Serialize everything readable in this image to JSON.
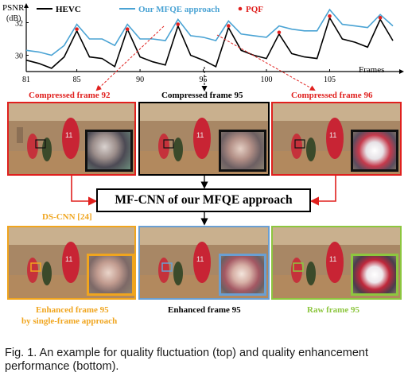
{
  "chart_data": {
    "type": "line",
    "ylabel": "PSNR",
    "ylabel_unit": "(dB)",
    "xlabel": "Frames",
    "xlim": [
      81,
      110
    ],
    "ylim": [
      29.0,
      33.0
    ],
    "x_ticks": [
      81,
      85,
      90,
      95,
      100,
      105
    ],
    "y_ticks": [
      30,
      32
    ],
    "x": [
      81,
      82,
      83,
      84,
      85,
      86,
      87,
      88,
      89,
      90,
      91,
      92,
      93,
      94,
      95,
      96,
      97,
      98,
      99,
      100,
      101,
      102,
      103,
      104,
      105,
      106,
      107,
      108,
      109,
      110
    ],
    "series": [
      {
        "name": "HEVC",
        "color": "#000000",
        "values": [
          29.7,
          29.5,
          29.2,
          29.9,
          31.5,
          29.9,
          29.8,
          29.3,
          31.6,
          29.9,
          29.6,
          29.4,
          31.8,
          30.0,
          29.7,
          29.3,
          31.7,
          30.3,
          30.0,
          29.8,
          31.3,
          30.1,
          29.9,
          29.8,
          32.3,
          31.0,
          30.8,
          30.5,
          32.2,
          30.9
        ]
      },
      {
        "name": "Our MFQE approach",
        "color": "#4aa3d4",
        "values": [
          30.3,
          30.2,
          30.0,
          30.6,
          31.9,
          31.0,
          31.0,
          30.6,
          31.9,
          31.0,
          31.0,
          30.9,
          32.2,
          31.2,
          31.1,
          30.9,
          32.1,
          31.3,
          31.2,
          31.1,
          31.8,
          31.6,
          31.5,
          31.5,
          32.8,
          31.9,
          31.8,
          31.7,
          32.5,
          31.8
        ]
      },
      {
        "name": "PQF",
        "color": "#e0201e",
        "marker": "dot",
        "x": [
          85,
          89,
          93,
          97,
          101,
          105,
          109
        ],
        "values": [
          31.6,
          31.6,
          31.9,
          31.8,
          31.4,
          32.4,
          32.3
        ]
      }
    ]
  },
  "labels": {
    "compressed_92": "Compressed frame 92",
    "compressed_95": "Compressed frame 95",
    "compressed_96": "Compressed frame 96",
    "mfcnn_box": "MF-CNN of our MFQE approach",
    "dscnn": "DS-CNN [24]",
    "enhanced_single_line1": "Enhanced frame 95",
    "enhanced_single_line2": "by single-frame approach",
    "enhanced_ours": "Enhanced frame 95",
    "raw": "Raw frame 95"
  },
  "caption": "Fig. 1. An example for quality fluctuation (top) and quality enhancement performance (bottom).",
  "colors": {
    "red": "#e0201e",
    "orange": "#f0a51e",
    "blue": "#6a9fd2",
    "green": "#8dc63f",
    "black": "#000000"
  }
}
